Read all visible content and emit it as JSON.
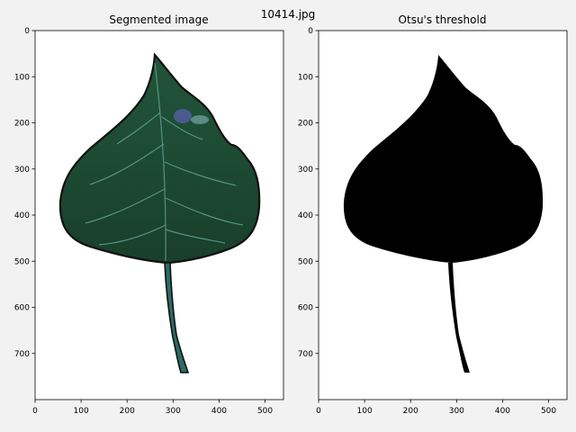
{
  "figure": {
    "suptitle": "10414.jpg",
    "background": "#f2f2f2",
    "axes_background": "#ffffff"
  },
  "panels": [
    {
      "title": "Segmented image",
      "image_kind": "segmented-leaf",
      "xticks": [
        "0",
        "100",
        "200",
        "300",
        "400",
        "500"
      ],
      "yticks": [
        "0",
        "100",
        "200",
        "300",
        "400",
        "500",
        "600",
        "700"
      ]
    },
    {
      "title": "Otsu's threshold",
      "image_kind": "binary-mask",
      "xticks": [
        "0",
        "100",
        "200",
        "300",
        "400",
        "500"
      ],
      "yticks": [
        "0",
        "100",
        "200",
        "300",
        "400",
        "500",
        "600",
        "700"
      ]
    }
  ],
  "chart_data": [
    {
      "type": "image",
      "title": "Segmented image",
      "xlim": [
        0,
        540
      ],
      "ylim": [
        800,
        0
      ],
      "x_ticks": [
        0,
        100,
        200,
        300,
        400,
        500
      ],
      "y_ticks": [
        0,
        100,
        200,
        300,
        400,
        500,
        600,
        700
      ],
      "colors": {
        "leaf": "#1e4a33",
        "vein": "#5fa08e",
        "outline": "#111111",
        "spot": "#4f5c98"
      }
    },
    {
      "type": "image",
      "title": "Otsu's threshold",
      "xlim": [
        0,
        540
      ],
      "ylim": [
        800,
        0
      ],
      "x_ticks": [
        0,
        100,
        200,
        300,
        400,
        500
      ],
      "y_ticks": [
        0,
        100,
        200,
        300,
        400,
        500,
        600,
        700
      ],
      "colors": {
        "mask": "#000000",
        "background": "#ffffff"
      }
    }
  ]
}
